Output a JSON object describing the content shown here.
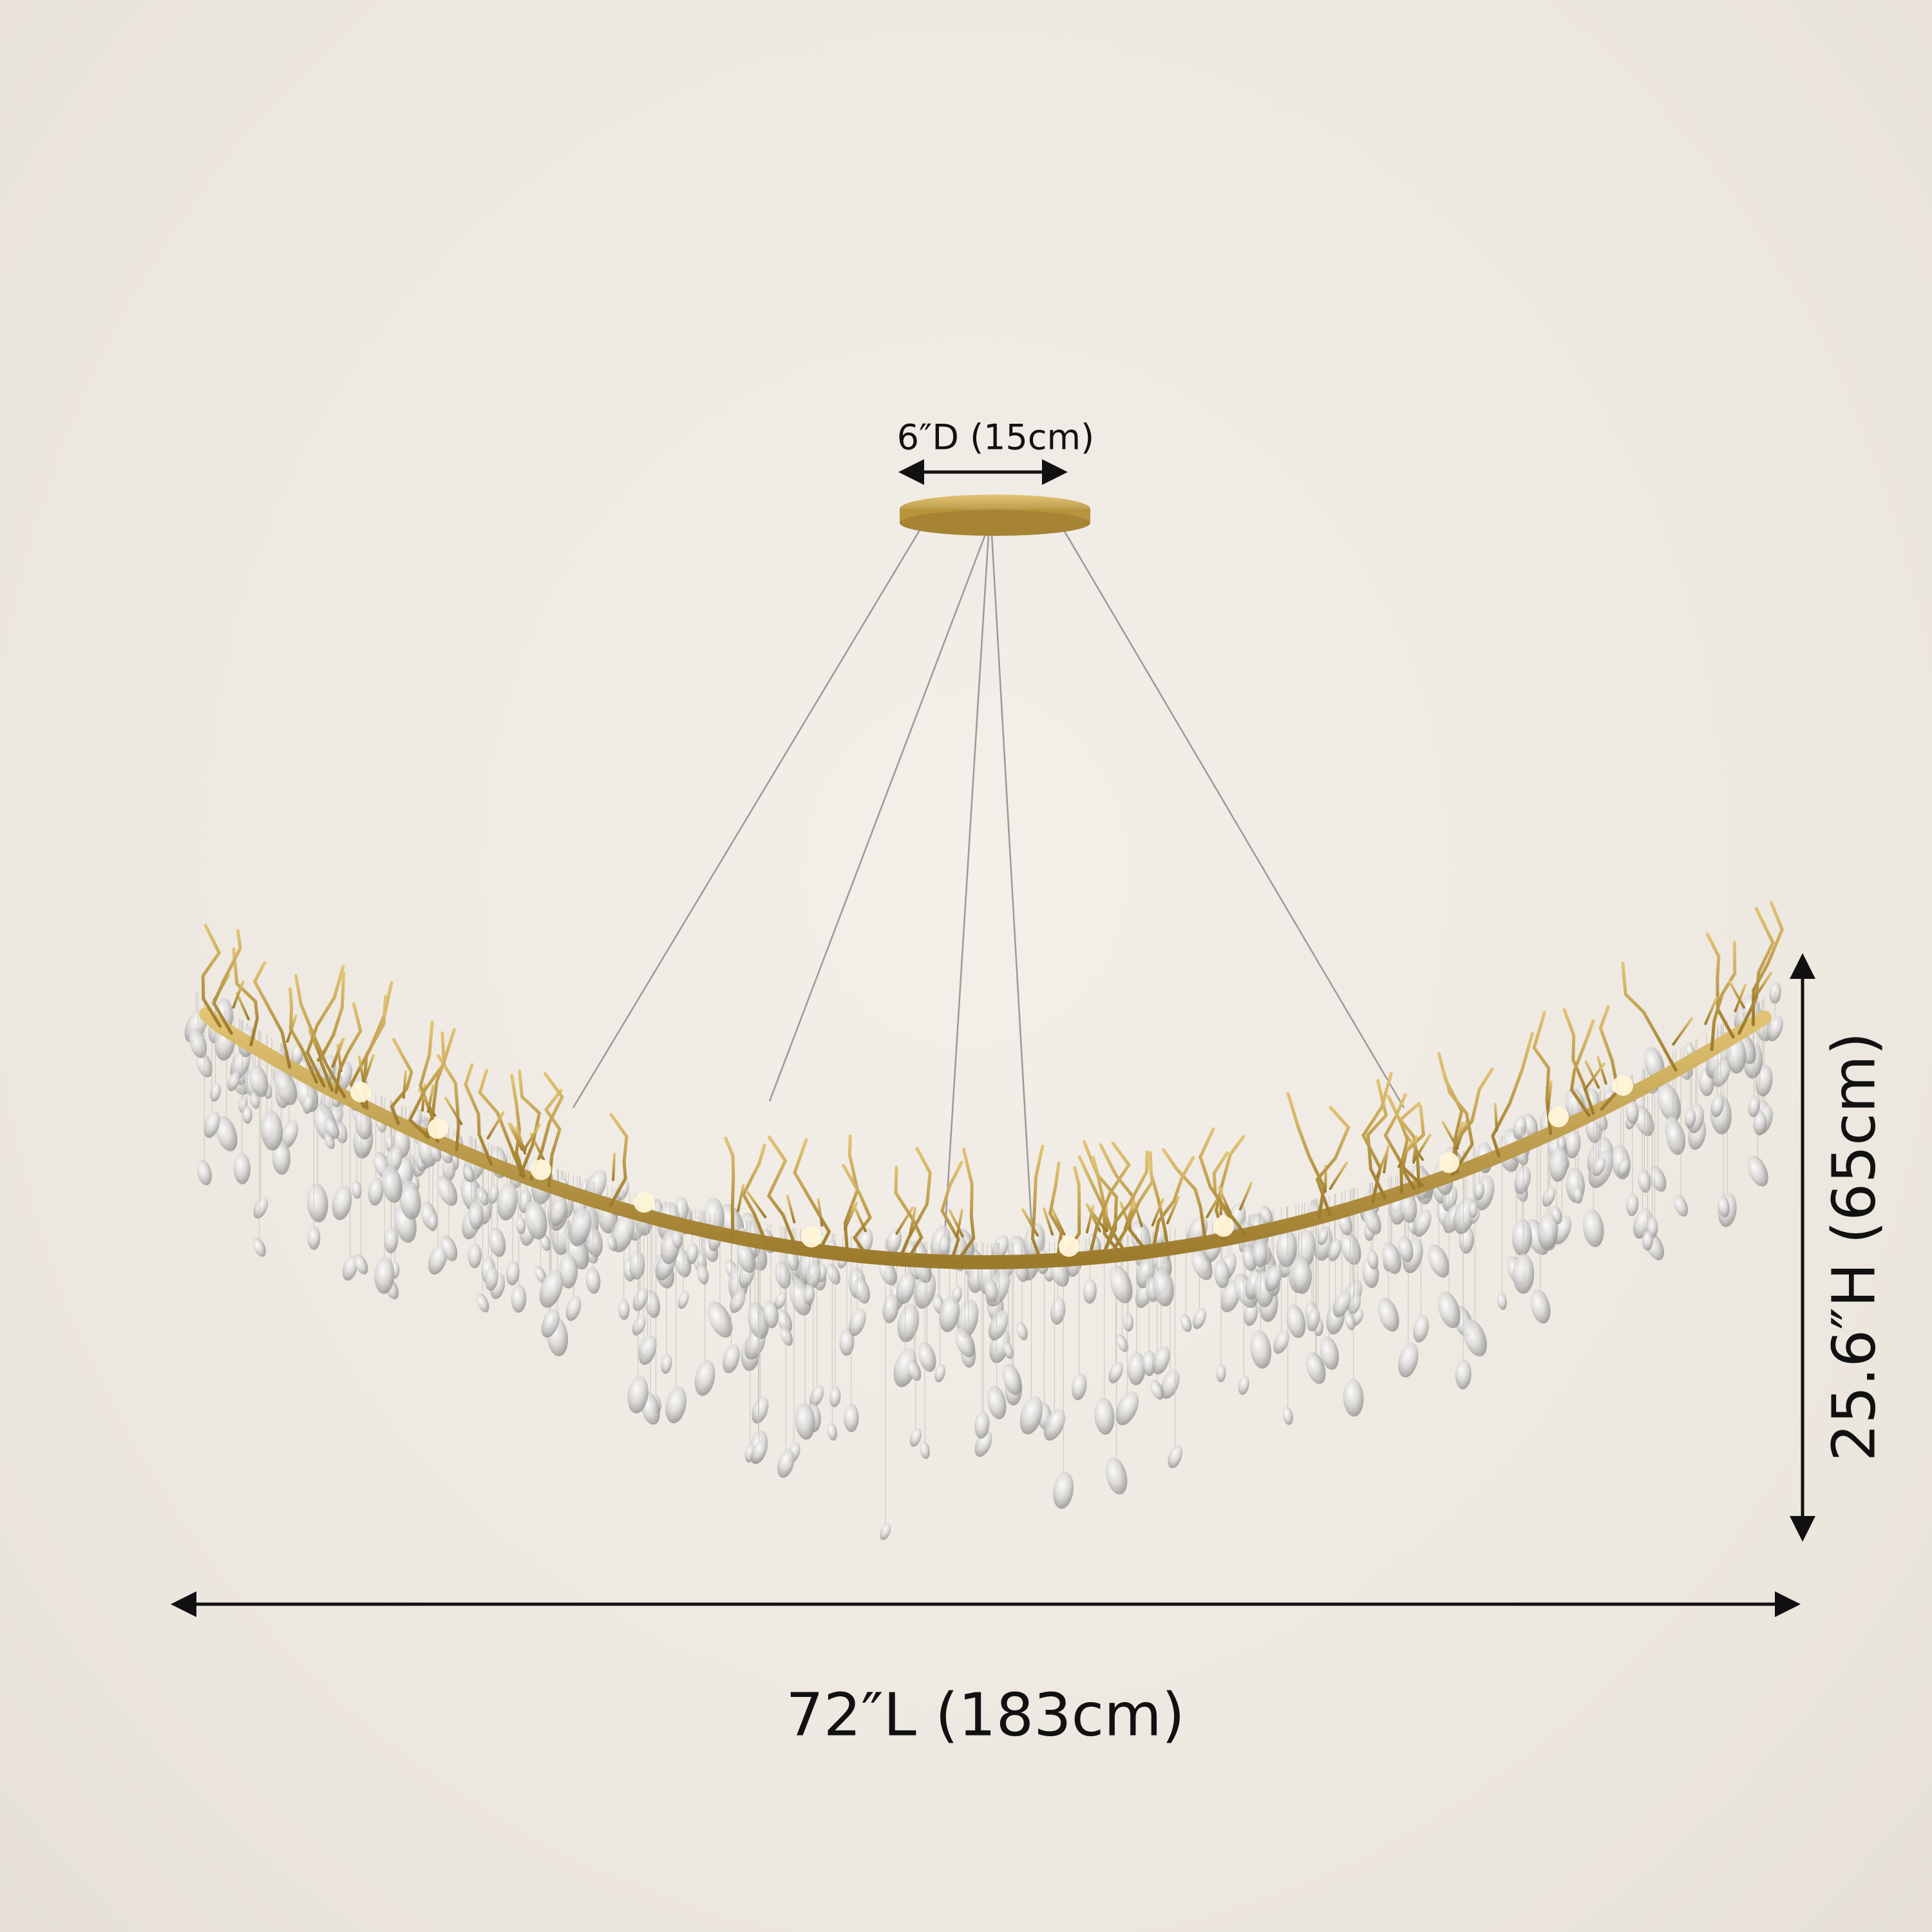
{
  "dimensions": {
    "canopy_diameter": "6″D (15cm)",
    "length": "72″L (183cm)",
    "height": "25.6″H (65cm)"
  },
  "colors": {
    "background": "#efebe4",
    "gold": "#c9a44a",
    "annotation": "#111111"
  }
}
